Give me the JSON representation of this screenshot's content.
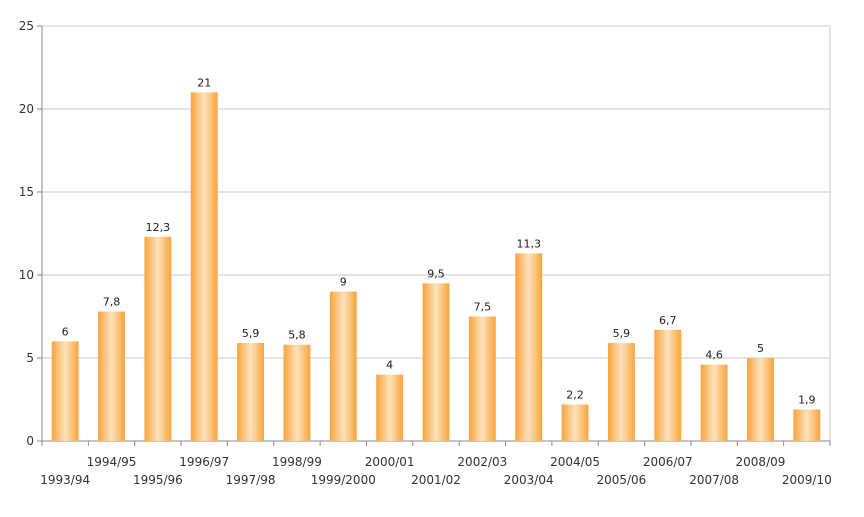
{
  "chart_data": {
    "type": "bar",
    "categories": [
      "1993/94",
      "1994/95",
      "1995/96",
      "1996/97",
      "1997/98",
      "1998/99",
      "1999/2000",
      "2000/01",
      "2001/02",
      "2002/03",
      "2003/04",
      "2004/05",
      "2005/06",
      "2006/07",
      "2007/08",
      "2008/09",
      "2009/10"
    ],
    "values": [
      6,
      7.8,
      12.3,
      21,
      5.9,
      5.8,
      9,
      4,
      9.5,
      7.5,
      11.3,
      2.2,
      5.9,
      6.7,
      4.6,
      5,
      1.9
    ],
    "value_labels": [
      "6",
      "7,8",
      "12,3",
      "21",
      "5,9",
      "5,8",
      "9",
      "4",
      "9,5",
      "7,5",
      "11,3",
      "2,2",
      "5,9",
      "6,7",
      "4,6",
      "5",
      "1,9"
    ],
    "ylim": [
      0,
      25
    ],
    "yticks": [
      0,
      5,
      10,
      15,
      20,
      25
    ],
    "title": "",
    "xlabel": "",
    "ylabel": "",
    "grid": true,
    "legend": "none",
    "bar_color": "#f9a43a",
    "bar_highlight": "#fde2bd",
    "grid_color": "#c8c8c8"
  }
}
